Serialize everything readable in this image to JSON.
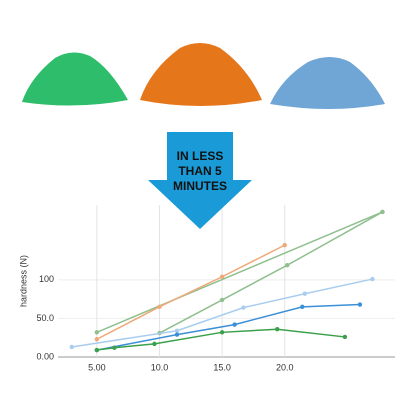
{
  "chart_data": {
    "type": "line",
    "annotation": [
      "IN LESS",
      "THAN 5",
      "MINUTES"
    ],
    "ylabel": "hardness (N)",
    "xlim": [
      1.9,
      28.8
    ],
    "ylim": [
      0,
      197
    ],
    "xticks": [
      {
        "value": 5,
        "label": "5.00"
      },
      {
        "value": 10,
        "label": "10.0"
      },
      {
        "value": 15,
        "label": "15.0"
      },
      {
        "value": 20,
        "label": "20.0"
      }
    ],
    "yticks": [
      {
        "value": 0,
        "label": "0.00"
      },
      {
        "value": 50,
        "label": "50.0"
      },
      100
    ],
    "grid": true,
    "series": [
      {
        "color": "#8fbf8f",
        "x": [
          5,
          27.8
        ],
        "values": [
          32,
          188
        ]
      },
      {
        "color": "#8fbf8f",
        "x": [
          10,
          15,
          20.2,
          27.8
        ],
        "values": [
          31,
          74,
          119,
          188
        ]
      },
      {
        "color": "#f0a878",
        "x": [
          5,
          10,
          15,
          20
        ],
        "values": [
          23,
          65,
          104,
          145
        ]
      },
      {
        "color": "#a9cdef",
        "x": [
          3,
          11.4,
          16.7,
          21.6,
          27
        ],
        "values": [
          13,
          34,
          64,
          82,
          101
        ]
      },
      {
        "color": "#3a8fd6",
        "x": [
          5,
          11.4,
          16,
          21.4,
          26
        ],
        "values": [
          9,
          29,
          42,
          65,
          68
        ]
      },
      {
        "color": "#3aa04a",
        "x": [
          5,
          6.4,
          9.6,
          15,
          19.4,
          24.8
        ],
        "values": [
          9,
          12,
          17,
          32,
          36,
          26
        ]
      }
    ]
  }
}
